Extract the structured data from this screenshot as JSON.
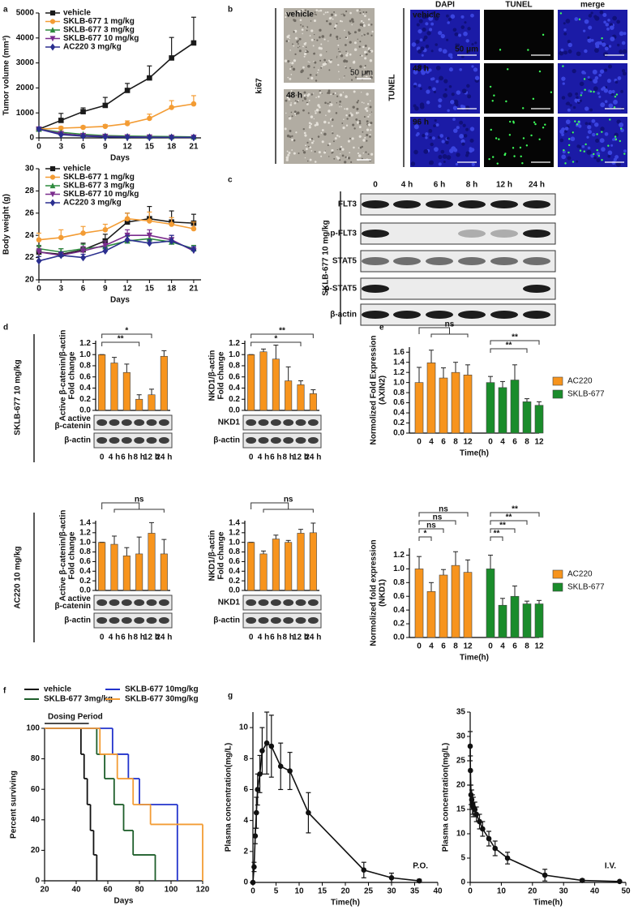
{
  "panel_labels": [
    "a",
    "b",
    "c",
    "d",
    "e",
    "f",
    "g"
  ],
  "microscopy": {
    "ki67": {
      "label": "ki67",
      "top": "vehicle",
      "bottom": "48 h",
      "scale": "50 μm"
    },
    "tunel": {
      "label": "TUNEL",
      "columns": [
        "DAPI",
        "TUNEL",
        "merge"
      ],
      "rows": [
        "vehicle",
        "48 h",
        "96 h"
      ],
      "scale": "50 μm"
    }
  },
  "western_blot": {
    "treatment": "SKLB-677 10 mg/kg",
    "timepoints": [
      "0",
      "4 h",
      "6 h",
      "8 h",
      "12 h",
      "24 h"
    ],
    "proteins": [
      "FLT3",
      "p-FLT3",
      "STAT5",
      "p-STAT5",
      "β-actin"
    ]
  },
  "d_treatments": [
    "SKLB-677 10 mg/kg",
    "AC220 10 mg/kg"
  ],
  "chart_data": [
    {
      "type": "line",
      "ylabel": "Tumor volume (mm³)",
      "xlabel": "Days",
      "x": [
        0,
        3,
        6,
        9,
        12,
        15,
        18,
        21
      ],
      "xlim": [
        0,
        22
      ],
      "xticks": [
        0,
        3,
        6,
        9,
        12,
        15,
        18,
        21
      ],
      "ylim": [
        0,
        5000
      ],
      "yticks": [
        0,
        1000,
        2000,
        3000,
        4000,
        5000
      ],
      "error_direction": "up",
      "legend": "upper left",
      "series": [
        {
          "name": "vehicle",
          "color": "#1a1a1a",
          "marker": "square",
          "values": [
            350,
            700,
            1050,
            1300,
            1900,
            2400,
            3200,
            3800
          ],
          "errors": [
            60,
            280,
            150,
            320,
            280,
            480,
            820,
            1030
          ]
        },
        {
          "name": "SKLB-677 1 mg/kg",
          "color": "#f39c34",
          "marker": "circle",
          "values": [
            350,
            390,
            420,
            460,
            570,
            780,
            1220,
            1360
          ],
          "errors": [
            50,
            60,
            60,
            70,
            110,
            170,
            270,
            330
          ]
        },
        {
          "name": "SKLB-677 3 mg/kg",
          "color": "#2e8b3e",
          "marker": "triangle",
          "values": [
            350,
            220,
            140,
            90,
            70,
            60,
            50,
            40
          ],
          "errors": [
            50,
            40,
            30,
            20,
            20,
            20,
            10,
            10
          ]
        },
        {
          "name": "SKLB-677 10 mg/kg",
          "color": "#7b2d8e",
          "marker": "triangle-down",
          "values": [
            350,
            170,
            90,
            60,
            40,
            30,
            20,
            20
          ],
          "errors": [
            50,
            40,
            20,
            15,
            10,
            10,
            10,
            10
          ]
        },
        {
          "name": "AC220 3 mg/kg",
          "color": "#2b2f8f",
          "marker": "diamond",
          "values": [
            350,
            130,
            70,
            40,
            30,
            20,
            20,
            20
          ],
          "errors": [
            50,
            30,
            20,
            10,
            10,
            10,
            10,
            10
          ]
        }
      ]
    },
    {
      "type": "line",
      "ylabel": "Body weight (g)",
      "xlabel": "Days",
      "x": [
        0,
        3,
        6,
        9,
        12,
        15,
        18,
        21
      ],
      "xlim": [
        0,
        22
      ],
      "xticks": [
        0,
        3,
        6,
        9,
        12,
        15,
        18,
        21
      ],
      "ylim": [
        20,
        30
      ],
      "yticks": [
        20,
        22,
        24,
        26,
        28,
        30
      ],
      "error_direction": "up",
      "legend": "upper left",
      "series": [
        {
          "name": "vehicle",
          "color": "#1a1a1a",
          "marker": "square",
          "values": [
            22.5,
            22.3,
            22.7,
            23.5,
            25.2,
            25.5,
            25.2,
            25.1
          ],
          "errors": [
            0.5,
            0.5,
            0.6,
            0.6,
            0.8,
            1.1,
            1.0,
            0.8
          ]
        },
        {
          "name": "SKLB-677 1 mg/kg",
          "color": "#f39c34",
          "marker": "circle",
          "values": [
            23.6,
            23.8,
            24.2,
            24.5,
            25.5,
            25.3,
            25.0,
            24.6
          ],
          "errors": [
            0.6,
            0.7,
            0.6,
            0.5,
            0.5,
            0.8,
            0.6,
            0.6
          ]
        },
        {
          "name": "SKLB-677 3 mg/kg",
          "color": "#2e8b3e",
          "marker": "triangle",
          "values": [
            22.8,
            22.5,
            22.8,
            23.0,
            23.5,
            23.7,
            23.4,
            22.8
          ],
          "errors": [
            0.3,
            0.3,
            0.4,
            0.5,
            0.4,
            0.5,
            0.4,
            0.3
          ]
        },
        {
          "name": "SKLB-677 10 mg/kg",
          "color": "#7b2d8e",
          "marker": "triangle-down",
          "values": [
            22.5,
            22.2,
            22.6,
            23.1,
            24.0,
            24.0,
            23.6,
            22.6
          ],
          "errors": [
            0.3,
            0.3,
            0.4,
            0.4,
            0.5,
            0.5,
            0.4,
            0.3
          ]
        },
        {
          "name": "AC220 3 mg/kg",
          "color": "#2b2f8f",
          "marker": "diamond",
          "values": [
            21.7,
            22.2,
            22.0,
            22.6,
            23.6,
            23.3,
            23.5,
            22.7
          ],
          "errors": [
            0.4,
            0.3,
            0.3,
            0.3,
            0.4,
            0.3,
            0.5,
            0.3
          ]
        }
      ]
    },
    {
      "type": "bar",
      "ylabel": [
        "Active β-catenin/β-actin",
        "Fold change"
      ],
      "categories": [
        "0",
        "4 h",
        "6 h",
        "8 h",
        "12 h",
        "24 h"
      ],
      "values": [
        1.0,
        0.85,
        0.68,
        0.2,
        0.28,
        0.97
      ],
      "errors": [
        0,
        0.1,
        0.15,
        0.08,
        0.1,
        0.1
      ],
      "color": "#f7941d",
      "ylim": [
        0,
        1.25
      ],
      "yticks": [
        {
          "value": 0,
          "label": "0.0"
        },
        0.2,
        0.4,
        0.6,
        0.8,
        {
          "value": 1,
          "label": "1.0"
        },
        1.2
      ],
      "annotations": [
        "**",
        "*"
      ],
      "blot_rows": [
        [
          "active",
          "β-catenin"
        ],
        [
          "β-actin"
        ]
      ]
    },
    {
      "type": "bar",
      "ylabel": [
        "NKD1/β-actin",
        "Fold change"
      ],
      "categories": [
        "0",
        "4 h",
        "6 h",
        "8 h",
        "12 h",
        "24 h"
      ],
      "values": [
        1.0,
        1.05,
        0.92,
        0.53,
        0.46,
        0.3
      ],
      "errors": [
        0,
        0.05,
        0.25,
        0.25,
        0.07,
        0.07
      ],
      "color": "#f7941d",
      "ylim": [
        0,
        1.25
      ],
      "yticks": [
        {
          "value": 0,
          "label": "0.0"
        },
        0.2,
        0.4,
        0.6,
        0.8,
        {
          "value": 1,
          "label": "1.0"
        },
        1.2
      ],
      "annotations": [
        "*",
        "**"
      ],
      "blot_rows": [
        [
          "NKD1"
        ],
        [
          "β-actin"
        ]
      ]
    },
    {
      "type": "bar",
      "ylabel": [
        "Active β-catenin/β-actin",
        "Fold change"
      ],
      "categories": [
        "0",
        "4 h",
        "6 h",
        "8 h",
        "12 h",
        "24 h"
      ],
      "values": [
        1.0,
        0.96,
        0.72,
        0.76,
        1.19,
        0.76
      ],
      "errors": [
        0,
        0.17,
        0.17,
        0.35,
        0.22,
        0.3
      ],
      "color": "#f7941d",
      "ylim": [
        0,
        1.45
      ],
      "yticks": [
        {
          "value": 0,
          "label": "0.0"
        },
        0.2,
        0.4,
        0.6,
        0.8,
        {
          "value": 1,
          "label": "1.0"
        },
        1.2,
        1.4
      ],
      "annotations": [
        "ns"
      ],
      "blot_rows": [
        [
          "active",
          "β-catenin"
        ],
        [
          "β-actin"
        ]
      ]
    },
    {
      "type": "bar",
      "ylabel": [
        "NKD1/β-actin",
        "Fold change"
      ],
      "categories": [
        "0",
        "4 h",
        "6 h",
        "8 h",
        "12 h",
        "24 h"
      ],
      "values": [
        1.0,
        0.76,
        1.07,
        1.0,
        1.19,
        1.2
      ],
      "errors": [
        0,
        0.06,
        0.08,
        0.04,
        0.08,
        0.2
      ],
      "color": "#f7941d",
      "ylim": [
        0,
        1.45
      ],
      "yticks": [
        {
          "value": 0,
          "label": "0.0"
        },
        0.2,
        0.4,
        0.6,
        0.8,
        {
          "value": 1,
          "label": "1.0"
        },
        1.2,
        1.4
      ],
      "annotations": [
        "ns"
      ],
      "blot_rows": [
        [
          "NKD1"
        ],
        [
          "β-actin"
        ]
      ]
    },
    {
      "type": "bar",
      "ylabel": [
        "Normolized Fold Expression",
        "(AXIN2)"
      ],
      "xlabel": "Time(h)",
      "categories": [
        "0",
        "4",
        "6",
        "8",
        "12"
      ],
      "series": [
        {
          "name": "AC220",
          "color": "#f7941d",
          "values": [
            1.0,
            1.39,
            1.09,
            1.2,
            1.15
          ],
          "errors": [
            0.3,
            0.25,
            0.2,
            0.2,
            0.2
          ]
        },
        {
          "name": "SKLB-677",
          "color": "#1a8c2b",
          "values": [
            1.0,
            0.9,
            1.05,
            0.62,
            0.55
          ],
          "errors": [
            0.12,
            0.12,
            0.3,
            0.06,
            0.07
          ]
        }
      ],
      "ylim": [
        0,
        1.7
      ],
      "yticks": [
        {
          "value": 0,
          "label": "0.0"
        },
        0.2,
        0.4,
        0.6,
        0.8,
        {
          "value": 1,
          "label": "1.0"
        },
        1.2,
        1.4,
        1.6
      ],
      "annotations": [
        "ns",
        "**",
        "**"
      ]
    },
    {
      "type": "bar",
      "ylabel": [
        "Normolized fold expression",
        "(NKD1)"
      ],
      "xlabel": "Time(h)",
      "categories": [
        "0",
        "4",
        "6",
        "8",
        "12"
      ],
      "series": [
        {
          "name": "AC220",
          "color": "#f7941d",
          "values": [
            1.0,
            0.67,
            0.91,
            1.05,
            0.95
          ],
          "errors": [
            0.18,
            0.13,
            0.08,
            0.2,
            0.18
          ]
        },
        {
          "name": "SKLB-677",
          "color": "#1a8c2b",
          "values": [
            1.0,
            0.47,
            0.6,
            0.49,
            0.49
          ],
          "errors": [
            0.2,
            0.1,
            0.15,
            0.04,
            0.05
          ]
        }
      ],
      "ylim": [
        0,
        1.3
      ],
      "yticks": [
        {
          "value": 0,
          "label": "0.0"
        },
        0.2,
        0.4,
        0.6,
        0.8,
        {
          "value": 1,
          "label": "1.0"
        },
        1.2
      ],
      "annotations": [
        "*",
        "ns",
        "ns",
        "ns",
        "**",
        "**",
        "**",
        "**"
      ]
    },
    {
      "type": "step",
      "ylabel": "Percent surviving",
      "xlabel": "Days",
      "xlim": [
        20,
        120
      ],
      "xticks": [
        20,
        40,
        60,
        80,
        100,
        120
      ],
      "ylim": [
        0,
        100
      ],
      "yticks": [
        0,
        20,
        40,
        60,
        80,
        100
      ],
      "dosing_period": {
        "label": "Dosing Period",
        "range": [
          20,
          48
        ]
      },
      "series": [
        {
          "name": "vehicle",
          "color": "#111111",
          "x": [
            20,
            43,
            45,
            47,
            49,
            51,
            53
          ],
          "values": [
            100,
            83,
            67,
            50,
            33,
            17,
            0
          ]
        },
        {
          "name": "SKLB-677 3mg/kg",
          "color": "#1d5e2a",
          "x": [
            20,
            53,
            58,
            64,
            70,
            76,
            90
          ],
          "values": [
            100,
            83,
            67,
            50,
            33,
            17,
            0
          ]
        },
        {
          "name": "SKLB-677 10mg/kg",
          "color": "#2233cc",
          "x": [
            20,
            63,
            73,
            80,
            104
          ],
          "values": [
            100,
            83,
            67,
            50,
            0
          ]
        },
        {
          "name": "SKLB-677 30mg/kg",
          "color": "#f39c34",
          "x": [
            20,
            55,
            66,
            76,
            87,
            120
          ],
          "values": [
            100,
            83,
            67,
            50,
            37,
            0
          ]
        }
      ]
    },
    {
      "type": "line",
      "ylabel": "Plasma concentration(mg/L)",
      "xlabel": "Time(h)",
      "annotation": "P.O.",
      "x": [
        0,
        0.25,
        0.5,
        0.75,
        1,
        1.5,
        2,
        3,
        4,
        6,
        8,
        12,
        24,
        30,
        36
      ],
      "xlim": [
        0,
        40
      ],
      "xticks": [
        0,
        5,
        10,
        15,
        20,
        25,
        30,
        35,
        40
      ],
      "ylim": [
        0,
        11
      ],
      "yticks": [
        0,
        2,
        4,
        6,
        8,
        10
      ],
      "error_direction": "both",
      "color": "#111111",
      "marker": "circle",
      "values": [
        0,
        1,
        3,
        4.5,
        6,
        7,
        8.5,
        9,
        8.8,
        7.5,
        7.2,
        4.5,
        0.8,
        0.3,
        0.1
      ],
      "errors": [
        0,
        0.3,
        0.5,
        1,
        1,
        1.2,
        1.5,
        2,
        2,
        1.5,
        1.2,
        1.3,
        0.5,
        0.3,
        0.1
      ]
    },
    {
      "type": "line",
      "ylabel": "Plasma concentration(mg/L)",
      "xlabel": "Time(h)",
      "annotation": "I.V.",
      "x": [
        0,
        0.083,
        0.25,
        0.5,
        0.75,
        1,
        1.5,
        2,
        3,
        4,
        6,
        8,
        12,
        24,
        36,
        48
      ],
      "xlim": [
        0,
        50
      ],
      "xticks": [
        0,
        10,
        20,
        30,
        40,
        50
      ],
      "ylim": [
        0,
        35
      ],
      "yticks": [
        0,
        5,
        10,
        15,
        20,
        25,
        30,
        35
      ],
      "error_direction": "both",
      "color": "#111111",
      "marker": "circle",
      "values": [
        28,
        23,
        18,
        17,
        16,
        15.5,
        15,
        14,
        12.5,
        11,
        9,
        7,
        5,
        1.5,
        0.4,
        0.2
      ],
      "errors": [
        3,
        3,
        2,
        2,
        2,
        2,
        1.5,
        1.5,
        1.5,
        1.5,
        1.5,
        1.5,
        1.2,
        1.2,
        0.3,
        0.1
      ]
    }
  ]
}
